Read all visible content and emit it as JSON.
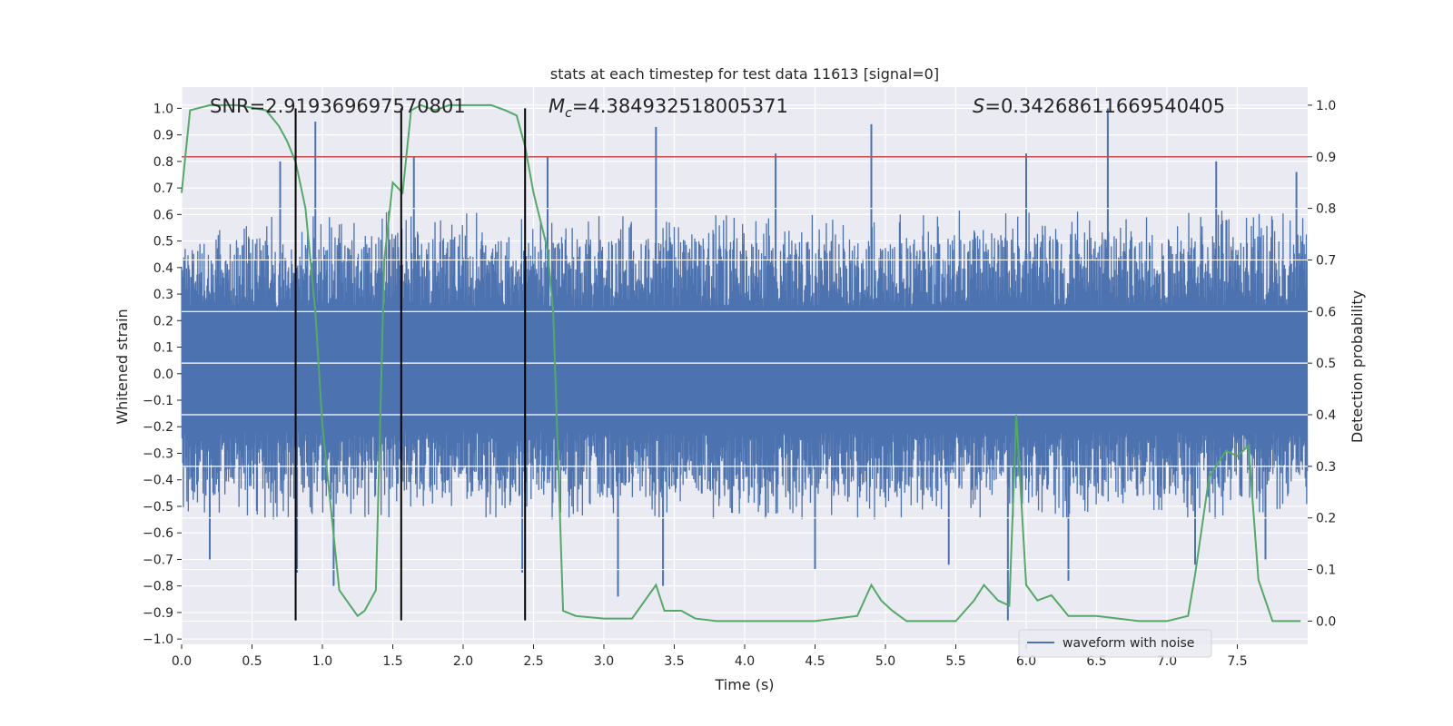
{
  "chart_data": {
    "type": "line",
    "title": "stats at each timestep for test data 11613 [signal=0]",
    "xlabel": "Time (s)",
    "ylabel_left": "Whitened strain",
    "ylabel_right": "Detection probability",
    "xlim": [
      0,
      8
    ],
    "ylim_left": [
      -1.02,
      1.08
    ],
    "ylim_right": [
      -0.045,
      1.035
    ],
    "x_ticks": [
      0.0,
      0.5,
      1.0,
      1.5,
      2.0,
      2.5,
      3.0,
      3.5,
      4.0,
      4.5,
      5.0,
      5.5,
      6.0,
      6.5,
      7.0,
      7.5
    ],
    "x_tick_labels": [
      "0.0",
      "0.5",
      "1.0",
      "1.5",
      "2.0",
      "2.5",
      "3.0",
      "3.5",
      "4.0",
      "4.5",
      "5.0",
      "5.5",
      "6.0",
      "6.5",
      "7.0",
      "7.5"
    ],
    "y_left_ticks": [
      -1.0,
      -0.9,
      -0.8,
      -0.7,
      -0.6,
      -0.5,
      -0.4,
      -0.3,
      -0.2,
      -0.1,
      0.0,
      0.1,
      0.2,
      0.3,
      0.4,
      0.5,
      0.6,
      0.7,
      0.8,
      0.9,
      1.0
    ],
    "y_left_tick_labels": [
      "−1.0",
      "−0.9",
      "−0.8",
      "−0.7",
      "−0.6",
      "−0.5",
      "−0.4",
      "−0.3",
      "−0.2",
      "−0.1",
      "0.0",
      "0.1",
      "0.2",
      "0.3",
      "0.4",
      "0.5",
      "0.6",
      "0.7",
      "0.8",
      "0.9",
      "1.0"
    ],
    "y_right_ticks": [
      0.0,
      0.1,
      0.2,
      0.3,
      0.4,
      0.5,
      0.6,
      0.7,
      0.8,
      0.9,
      1.0
    ],
    "y_right_tick_labels": [
      "0.0",
      "0.1",
      "0.2",
      "0.3",
      "0.4",
      "0.5",
      "0.6",
      "0.7",
      "0.8",
      "0.9",
      "1.0"
    ],
    "annotations": {
      "snr": "SNR=2.919369697570801",
      "mc_symbol": "M",
      "mc_subscript": "c",
      "mc_value": "=4.384932518005371",
      "s_symbol": "S",
      "s_value": "=0.34268611669540405"
    },
    "legend": {
      "label": "waveform with noise",
      "position": "lower-right"
    },
    "threshold_line": {
      "axis": "right",
      "y": 0.9,
      "color": "#c44e52"
    },
    "vertical_markers": {
      "x": [
        0.81,
        1.56,
        2.44
      ],
      "y_range": [
        -0.93,
        1.0
      ],
      "color": "#000000"
    },
    "strain_series": {
      "name": "waveform with noise",
      "color": "#4c72b0",
      "envelope_x": [
        0.0,
        0.5,
        1.0,
        1.5,
        2.0,
        2.5,
        3.0,
        3.5,
        4.0,
        4.5,
        5.0,
        5.5,
        6.0,
        6.5,
        7.0,
        7.5,
        8.0
      ],
      "envelope_max": [
        0.55,
        0.6,
        0.6,
        0.62,
        0.62,
        0.58,
        0.6,
        0.6,
        0.6,
        0.6,
        0.6,
        0.62,
        0.62,
        0.62,
        0.6,
        0.62,
        0.6
      ],
      "envelope_min": [
        -0.52,
        -0.55,
        -0.55,
        -0.55,
        -0.55,
        -0.55,
        -0.55,
        -0.55,
        -0.55,
        -0.55,
        -0.55,
        -0.55,
        -0.55,
        -0.55,
        -0.55,
        -0.55,
        -0.5
      ],
      "peaks": [
        {
          "x": 0.7,
          "y": 0.8
        },
        {
          "x": 0.95,
          "y": 0.95
        },
        {
          "x": 1.65,
          "y": 0.82
        },
        {
          "x": 2.6,
          "y": 0.82
        },
        {
          "x": 3.37,
          "y": 0.93
        },
        {
          "x": 4.22,
          "y": 0.83
        },
        {
          "x": 4.9,
          "y": 0.94
        },
        {
          "x": 6.0,
          "y": 0.83
        },
        {
          "x": 6.58,
          "y": 1.0
        },
        {
          "x": 7.35,
          "y": 0.8
        },
        {
          "x": 7.92,
          "y": 0.76
        },
        {
          "x": 0.2,
          "y": -0.7
        },
        {
          "x": 0.82,
          "y": -0.75
        },
        {
          "x": 1.08,
          "y": -0.8
        },
        {
          "x": 2.42,
          "y": -0.75
        },
        {
          "x": 3.1,
          "y": -0.84
        },
        {
          "x": 3.42,
          "y": -0.8
        },
        {
          "x": 4.5,
          "y": -0.74
        },
        {
          "x": 5.45,
          "y": -0.72
        },
        {
          "x": 5.87,
          "y": -0.93
        },
        {
          "x": 6.3,
          "y": -0.78
        },
        {
          "x": 7.2,
          "y": -0.72
        },
        {
          "x": 7.7,
          "y": -0.7
        }
      ]
    },
    "probability_series": {
      "name": "detection probability",
      "axis": "right",
      "color": "#55a868",
      "x": [
        0.0,
        0.06,
        0.2,
        0.4,
        0.6,
        0.69,
        0.75,
        0.81,
        0.88,
        0.95,
        1.0,
        1.12,
        1.25,
        1.3,
        1.38,
        1.44,
        1.5,
        1.57,
        1.63,
        1.7,
        1.8,
        1.9,
        2.0,
        2.1,
        2.2,
        2.3,
        2.38,
        2.44,
        2.5,
        2.6,
        2.64,
        2.71,
        2.8,
        3.0,
        3.2,
        3.37,
        3.43,
        3.55,
        3.65,
        3.8,
        4.0,
        4.2,
        4.5,
        4.8,
        4.9,
        4.97,
        5.05,
        5.15,
        5.3,
        5.5,
        5.63,
        5.7,
        5.8,
        5.88,
        5.93,
        6.0,
        6.08,
        6.18,
        6.3,
        6.5,
        6.8,
        7.0,
        7.15,
        7.2,
        7.3,
        7.42,
        7.5,
        7.58,
        7.65,
        7.75,
        7.95
      ],
      "y": [
        0.83,
        0.99,
        1.0,
        1.0,
        0.99,
        0.96,
        0.93,
        0.89,
        0.8,
        0.6,
        0.38,
        0.06,
        0.01,
        0.02,
        0.06,
        0.7,
        0.85,
        0.83,
        0.99,
        1.0,
        0.99,
        1.0,
        1.0,
        1.0,
        1.0,
        0.99,
        0.98,
        0.92,
        0.83,
        0.72,
        0.6,
        0.02,
        0.01,
        0.005,
        0.005,
        0.07,
        0.02,
        0.02,
        0.005,
        0.0,
        0.0,
        0.0,
        0.0,
        0.01,
        0.07,
        0.04,
        0.02,
        0.0,
        0.0,
        0.0,
        0.04,
        0.07,
        0.04,
        0.03,
        0.4,
        0.07,
        0.04,
        0.05,
        0.01,
        0.01,
        0.0,
        0.0,
        0.01,
        0.09,
        0.28,
        0.33,
        0.32,
        0.34,
        0.08,
        0.0,
        0.0
      ]
    }
  }
}
